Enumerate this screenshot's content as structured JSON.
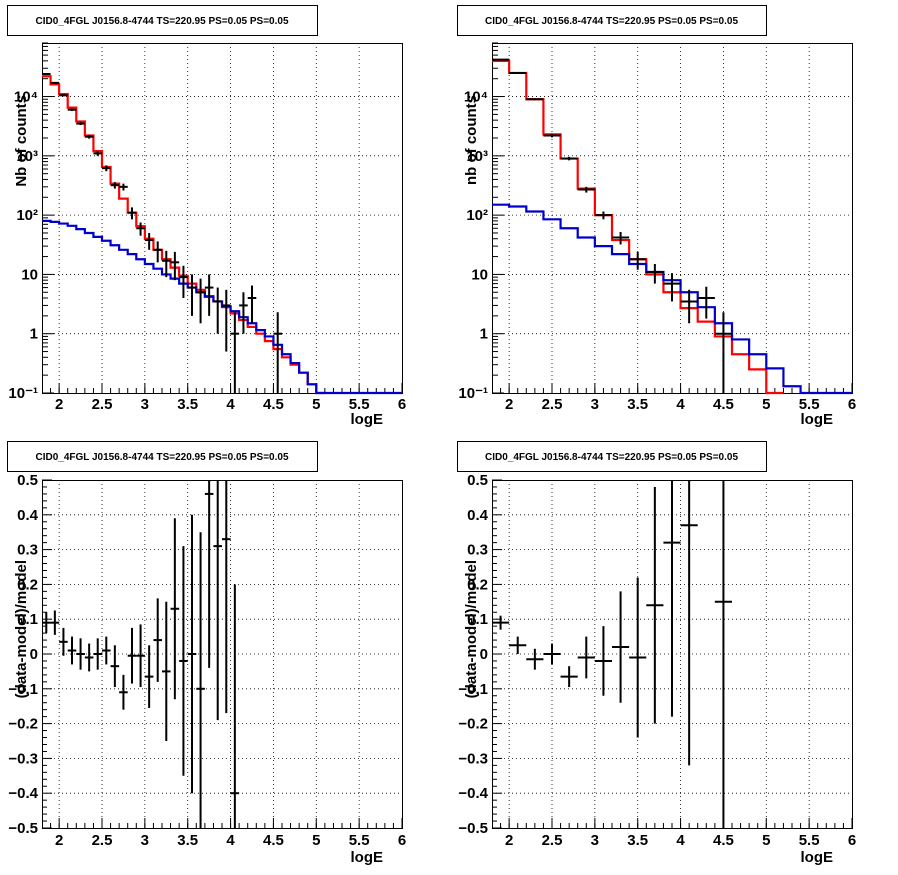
{
  "colors": {
    "data": "#000000",
    "total": "#ff0000",
    "background": "#0000cc"
  },
  "chart_data": [
    {
      "type": "line",
      "title": "CID0_4FGL J0156.8-4744 TS=220.95 PS=0.05 PS=0.05",
      "xlabel": "logE",
      "ylabel": "Nb of counts",
      "xlim": [
        1.8,
        6.0
      ],
      "ylim": [
        0.1,
        80000
      ],
      "yscale": "log",
      "grid": true,
      "xticks": [
        "2",
        "2.5",
        "3",
        "3.5",
        "4",
        "4.5",
        "5",
        "5.5",
        "6"
      ],
      "yticks": [
        "10⁻¹",
        "1",
        "10",
        "10²",
        "10³",
        "10⁴"
      ],
      "series": [
        {
          "role": "total",
          "step": true,
          "x": [
            1.8,
            1.9,
            2.0,
            2.1,
            2.2,
            2.3,
            2.4,
            2.5,
            2.6,
            2.7,
            2.8,
            2.9,
            3.0,
            3.1,
            3.2,
            3.3,
            3.4,
            3.5,
            3.6,
            3.7,
            3.8,
            3.9,
            4.0,
            4.1,
            4.2,
            4.3,
            4.4,
            4.5,
            4.6,
            4.7,
            4.8,
            4.9,
            5.0
          ],
          "values": [
            22000,
            16000,
            11000,
            6500,
            3800,
            2200,
            1200,
            650,
            340,
            190,
            110,
            65,
            40,
            26,
            18,
            13,
            9.5,
            7,
            5.5,
            4.3,
            3.5,
            2.8,
            2.2,
            1.7,
            1.3,
            1.0,
            0.75,
            0.55,
            0.4,
            0.3,
            0.22,
            0.14,
            0.1
          ]
        },
        {
          "role": "background",
          "step": true,
          "x": [
            1.8,
            1.9,
            2.0,
            2.1,
            2.2,
            2.3,
            2.4,
            2.5,
            2.6,
            2.7,
            2.8,
            2.9,
            3.0,
            3.1,
            3.2,
            3.3,
            3.4,
            3.5,
            3.6,
            3.7,
            3.8,
            3.9,
            4.0,
            4.1,
            4.2,
            4.3,
            4.4,
            4.5,
            4.6,
            4.7,
            4.8,
            4.9,
            5.0,
            5.1,
            5.2,
            5.3,
            5.4,
            5.5,
            5.6,
            5.7,
            5.8,
            5.9
          ],
          "values": [
            80,
            77,
            72,
            66,
            58,
            50,
            43,
            37,
            31,
            26,
            22,
            18,
            15,
            12.5,
            10,
            8.5,
            7,
            6,
            5,
            4.2,
            3.5,
            2.9,
            2.4,
            1.9,
            1.5,
            1.15,
            0.9,
            0.65,
            0.45,
            0.32,
            0.22,
            0.14,
            0.1,
            0.1,
            0.1,
            0.1,
            0.1,
            0.1,
            0.1,
            0.1,
            0.1,
            0.1
          ]
        },
        {
          "role": "data",
          "points": true,
          "x": [
            1.85,
            1.95,
            2.05,
            2.15,
            2.25,
            2.35,
            2.45,
            2.55,
            2.65,
            2.75,
            2.85,
            2.95,
            3.05,
            3.15,
            3.25,
            3.35,
            3.45,
            3.55,
            3.65,
            3.75,
            3.85,
            3.95,
            4.05,
            4.15,
            4.25,
            4.55
          ],
          "values": [
            24000,
            17000,
            10500,
            6000,
            3500,
            2100,
            1100,
            620,
            320,
            300,
            110,
            60,
            38,
            26,
            17,
            16,
            9,
            6,
            5,
            6,
            3.5,
            3,
            1,
            3,
            4,
            1
          ],
          "err_lo": [
            600,
            500,
            400,
            300,
            200,
            150,
            100,
            70,
            40,
            40,
            25,
            15,
            12,
            10,
            8,
            8,
            5,
            4,
            3.5,
            4,
            2.5,
            2.5,
            0.99,
            2,
            2.5,
            0.99
          ],
          "err_hi": [
            600,
            500,
            400,
            300,
            200,
            150,
            100,
            70,
            40,
            40,
            25,
            15,
            12,
            10,
            8,
            8,
            5,
            4,
            3.5,
            4,
            2.5,
            2.5,
            1.3,
            2,
            2.5,
            1.3
          ]
        }
      ]
    },
    {
      "type": "line",
      "title": "CID0_4FGL J0156.8-4744 TS=220.95 PS=0.05 PS=0.05",
      "xlabel": "logE",
      "ylabel": "nb of counts",
      "xlim": [
        1.8,
        6.0
      ],
      "ylim": [
        0.1,
        80000
      ],
      "yscale": "log",
      "grid": true,
      "xticks": [
        "2",
        "2.5",
        "3",
        "3.5",
        "4",
        "4.5",
        "5",
        "5.5",
        "6"
      ],
      "yticks": [
        "10⁻¹",
        "1",
        "10",
        "10²",
        "10³",
        "10⁴"
      ],
      "series": [
        {
          "role": "total",
          "step": true,
          "x": [
            1.8,
            2.0,
            2.2,
            2.4,
            2.6,
            2.8,
            3.0,
            3.2,
            3.4,
            3.6,
            3.8,
            4.0,
            4.2,
            4.4,
            4.6,
            4.8,
            5.0
          ],
          "values": [
            40000,
            25000,
            9000,
            2300,
            900,
            280,
            100,
            38,
            18,
            10,
            5,
            2.7,
            1.6,
            0.9,
            0.45,
            0.25,
            0.1
          ],
          "extend_to": 5.2
        },
        {
          "role": "background",
          "step": true,
          "x": [
            1.8,
            2.0,
            2.2,
            2.4,
            2.6,
            2.8,
            3.0,
            3.2,
            3.4,
            3.6,
            3.8,
            4.0,
            4.2,
            4.4,
            4.6,
            4.8,
            5.0,
            5.2,
            5.4,
            5.6,
            5.8
          ],
          "values": [
            150,
            140,
            115,
            85,
            60,
            42,
            30,
            22,
            15,
            11,
            8,
            5,
            2.8,
            1.5,
            0.8,
            0.45,
            0.26,
            0.13,
            0.1,
            0.1,
            0.1
          ],
          "extend_to": 6.0
        },
        {
          "role": "data",
          "points": true,
          "x": [
            1.9,
            2.1,
            2.3,
            2.5,
            2.7,
            2.9,
            3.1,
            3.3,
            3.5,
            3.7,
            3.9,
            4.1,
            4.3,
            4.5
          ],
          "values": [
            42000,
            25000,
            9000,
            2200,
            900,
            270,
            100,
            42,
            18,
            11,
            7,
            3.5,
            4,
            1
          ],
          "err_lo": [
            800,
            600,
            300,
            150,
            60,
            30,
            15,
            10,
            6,
            4,
            3.5,
            2,
            2.2,
            0.99
          ],
          "err_hi": [
            800,
            600,
            300,
            150,
            60,
            30,
            15,
            10,
            6,
            4,
            3.5,
            2,
            2.2,
            1.3
          ]
        }
      ]
    },
    {
      "type": "scatter",
      "title": "CID0_4FGL J0156.8-4744 TS=220.95 PS=0.05 PS=0.05",
      "xlabel": "logE",
      "ylabel": "(data-model)/model",
      "xlim": [
        1.8,
        6.0
      ],
      "ylim": [
        -0.5,
        0.5
      ],
      "grid": true,
      "xticks": [
        "2",
        "2.5",
        "3",
        "3.5",
        "4",
        "4.5",
        "5",
        "5.5",
        "6"
      ],
      "yticks": [
        "−0.5",
        "−0.4",
        "−0.3",
        "−0.2",
        "−0.1",
        "0",
        "0.1",
        "0.2",
        "0.3",
        "0.4",
        "0.5"
      ],
      "series": [
        {
          "role": "residual",
          "xerr": 0.05,
          "x": [
            1.85,
            1.95,
            2.05,
            2.15,
            2.25,
            2.35,
            2.45,
            2.55,
            2.65,
            2.75,
            2.85,
            2.95,
            3.05,
            3.15,
            3.25,
            3.35,
            3.45,
            3.55,
            3.65,
            3.75,
            3.85,
            3.95,
            4.05
          ],
          "values": [
            0.09,
            0.09,
            0.035,
            0.01,
            0.0,
            -0.01,
            0.0,
            0.01,
            -0.035,
            -0.11,
            -0.005,
            -0.005,
            -0.065,
            0.04,
            -0.05,
            0.13,
            -0.02,
            0.0,
            -0.1,
            0.46,
            0.31,
            0.33,
            -0.4
          ],
          "err": [
            0.03,
            0.035,
            0.04,
            0.04,
            0.045,
            0.04,
            0.045,
            0.04,
            0.06,
            0.05,
            0.08,
            0.09,
            0.09,
            0.12,
            0.2,
            0.26,
            0.33,
            0.4,
            0.45,
            0.5,
            0.5,
            0.5,
            0.6
          ]
        }
      ]
    },
    {
      "type": "scatter",
      "title": "CID0_4FGL J0156.8-4744 TS=220.95 PS=0.05 PS=0.05",
      "xlabel": "logE",
      "ylabel": "(data-model)/model",
      "xlim": [
        1.8,
        6.0
      ],
      "ylim": [
        -0.5,
        0.5
      ],
      "grid": true,
      "xticks": [
        "2",
        "2.5",
        "3",
        "3.5",
        "4",
        "4.5",
        "5",
        "5.5",
        "6"
      ],
      "yticks": [
        "−0.5",
        "−0.4",
        "−0.3",
        "−0.2",
        "−0.1",
        "0",
        "0.1",
        "0.2",
        "0.3",
        "0.4",
        "0.5"
      ],
      "series": [
        {
          "role": "residual",
          "xerr": 0.1,
          "x": [
            1.9,
            2.1,
            2.3,
            2.5,
            2.7,
            2.9,
            3.1,
            3.3,
            3.5,
            3.7,
            3.9,
            4.1,
            4.5
          ],
          "values": [
            0.09,
            0.025,
            -0.015,
            0.0,
            -0.065,
            -0.01,
            -0.02,
            0.02,
            -0.01,
            0.14,
            0.32,
            0.37,
            0.15
          ],
          "err": [
            0.02,
            0.025,
            0.03,
            0.03,
            0.03,
            0.06,
            0.1,
            0.16,
            0.23,
            0.34,
            0.5,
            0.69,
            0.9
          ]
        }
      ]
    }
  ]
}
